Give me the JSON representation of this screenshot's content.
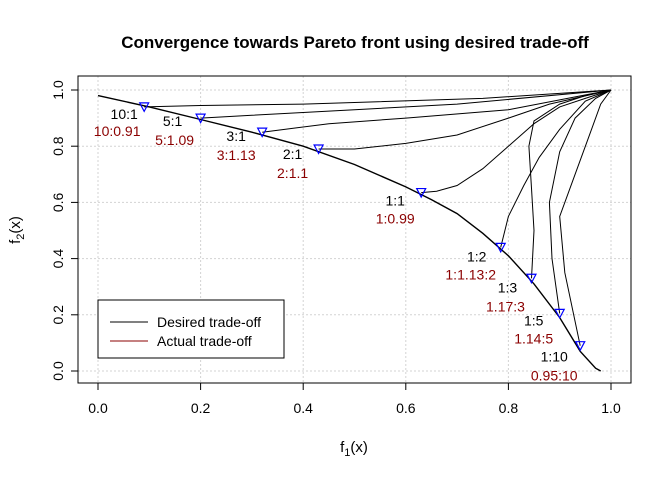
{
  "chart_data": {
    "type": "line",
    "title": "Convergence towards Pareto front using desired trade-off",
    "xlabel": {
      "base": "f",
      "sub": "1",
      "suffix": "(x)"
    },
    "ylabel": {
      "base": "f",
      "sub": "2",
      "suffix": "(x)"
    },
    "xlim": [
      0,
      1
    ],
    "ylim": [
      0,
      1
    ],
    "xticks": [
      "0.0",
      "0.2",
      "0.4",
      "0.6",
      "0.8",
      "1.0"
    ],
    "yticks": [
      "0.0",
      "0.2",
      "0.4",
      "0.6",
      "0.8",
      "1.0"
    ],
    "grid": true,
    "pareto_front": [
      [
        0.0,
        0.98
      ],
      [
        0.1,
        0.94
      ],
      [
        0.2,
        0.895
      ],
      [
        0.3,
        0.85
      ],
      [
        0.4,
        0.8
      ],
      [
        0.5,
        0.735
      ],
      [
        0.6,
        0.655
      ],
      [
        0.65,
        0.61
      ],
      [
        0.7,
        0.56
      ],
      [
        0.75,
        0.49
      ],
      [
        0.8,
        0.41
      ],
      [
        0.85,
        0.31
      ],
      [
        0.9,
        0.19
      ],
      [
        0.94,
        0.07
      ],
      [
        0.97,
        0.01
      ],
      [
        0.98,
        0.0
      ]
    ],
    "solutions": [
      {
        "desired": "10:1",
        "actual": "10:0.91",
        "point": [
          0.09,
          0.94
        ],
        "path": [
          [
            1.0,
            1.0
          ],
          [
            0.75,
            0.97
          ],
          [
            0.4,
            0.95
          ],
          [
            0.2,
            0.945
          ],
          [
            0.09,
            0.94
          ]
        ]
      },
      {
        "desired": "5:1",
        "actual": "5:1.09",
        "point": [
          0.2,
          0.9
        ],
        "path": [
          [
            1.0,
            1.0
          ],
          [
            0.7,
            0.95
          ],
          [
            0.5,
            0.93
          ],
          [
            0.3,
            0.91
          ],
          [
            0.2,
            0.9
          ]
        ]
      },
      {
        "desired": "3:1",
        "actual": "3:1.13",
        "point": [
          0.32,
          0.85
        ],
        "path": [
          [
            1.0,
            1.0
          ],
          [
            0.8,
            0.93
          ],
          [
            0.6,
            0.9
          ],
          [
            0.45,
            0.88
          ],
          [
            0.32,
            0.85
          ]
        ]
      },
      {
        "desired": "2:1",
        "actual": "2:1.1",
        "point": [
          0.43,
          0.79
        ],
        "path": [
          [
            1.0,
            1.0
          ],
          [
            0.88,
            0.95
          ],
          [
            0.8,
            0.9
          ],
          [
            0.7,
            0.84
          ],
          [
            0.6,
            0.81
          ],
          [
            0.5,
            0.79
          ],
          [
            0.43,
            0.79
          ]
        ]
      },
      {
        "desired": "1:1",
        "actual": "1:0.99",
        "point": [
          0.63,
          0.635
        ],
        "path": [
          [
            1.0,
            1.0
          ],
          [
            0.95,
            0.97
          ],
          [
            0.9,
            0.94
          ],
          [
            0.85,
            0.88
          ],
          [
            0.8,
            0.8
          ],
          [
            0.75,
            0.72
          ],
          [
            0.7,
            0.66
          ],
          [
            0.66,
            0.64
          ],
          [
            0.63,
            0.635
          ]
        ]
      },
      {
        "desired": "1:2",
        "actual": "1:1.13:2",
        "point": [
          0.785,
          0.44
        ],
        "path": [
          [
            1.0,
            1.0
          ],
          [
            0.95,
            0.96
          ],
          [
            0.9,
            0.86
          ],
          [
            0.86,
            0.76
          ],
          [
            0.83,
            0.66
          ],
          [
            0.8,
            0.55
          ],
          [
            0.785,
            0.44
          ]
        ]
      },
      {
        "desired": "1:3",
        "actual": "1.17:3",
        "point": [
          0.845,
          0.33
        ],
        "path": [
          [
            1.0,
            1.0
          ],
          [
            0.95,
            0.98
          ],
          [
            0.9,
            0.95
          ],
          [
            0.85,
            0.89
          ],
          [
            0.84,
            0.8
          ],
          [
            0.845,
            0.65
          ],
          [
            0.85,
            0.5
          ],
          [
            0.845,
            0.33
          ]
        ]
      },
      {
        "desired": "1:5",
        "actual": "1.14:5",
        "point": [
          0.9,
          0.205
        ],
        "path": [
          [
            1.0,
            1.0
          ],
          [
            0.97,
            0.97
          ],
          [
            0.93,
            0.9
          ],
          [
            0.9,
            0.78
          ],
          [
            0.88,
            0.6
          ],
          [
            0.885,
            0.4
          ],
          [
            0.9,
            0.205
          ]
        ]
      },
      {
        "desired": "1:10",
        "actual": "0.95:10",
        "point": [
          0.94,
          0.09
        ],
        "path": [
          [
            1.0,
            1.0
          ],
          [
            0.98,
            0.95
          ],
          [
            0.96,
            0.85
          ],
          [
            0.93,
            0.7
          ],
          [
            0.9,
            0.55
          ],
          [
            0.91,
            0.35
          ],
          [
            0.94,
            0.09
          ]
        ]
      }
    ],
    "legend": {
      "placement": "bottom-left",
      "entries": [
        {
          "label": "Desired trade-off",
          "color": "#000000"
        },
        {
          "label": "Actual trade-off",
          "color": "#8b0000"
        }
      ]
    },
    "colors": {
      "line": "#000000",
      "marker": "#0000ff",
      "actual_text": "#8b0000",
      "grid": "#d3d3d3"
    }
  }
}
